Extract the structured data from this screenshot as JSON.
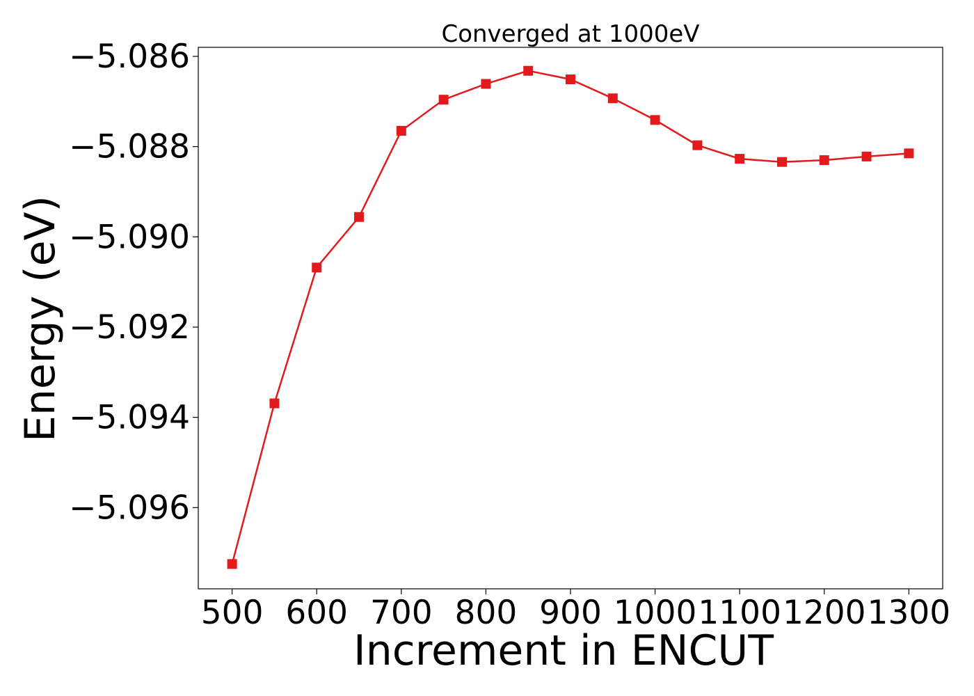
{
  "chart_data": {
    "type": "line",
    "title": "Converged at 1000eV",
    "xlabel": "Increment in ENCUT",
    "ylabel": "Energy (eV)",
    "x": [
      500,
      550,
      600,
      650,
      700,
      750,
      800,
      850,
      900,
      950,
      1000,
      1050,
      1100,
      1150,
      1200,
      1250,
      1300
    ],
    "series": [
      {
        "values": [
          -5.09725,
          -5.09369,
          -5.09068,
          -5.08956,
          -5.08765,
          -5.08696,
          -5.08661,
          -5.08632,
          -5.08651,
          -5.08693,
          -5.08741,
          -5.08797,
          -5.08827,
          -5.08834,
          -5.0883,
          -5.08822,
          -5.08815
        ],
        "color": "#e31a1c",
        "marker": "square"
      }
    ],
    "xlim": [
      460,
      1340
    ],
    "ylim": [
      -5.0978,
      -5.0858
    ],
    "xticks": [
      500,
      600,
      700,
      800,
      900,
      1000,
      1100,
      1200,
      1300
    ],
    "xtick_labels": [
      "500",
      "600",
      "700",
      "800",
      "900",
      "1000",
      "1100",
      "1200",
      "1300"
    ],
    "yticks": [
      -5.086,
      -5.088,
      -5.09,
      -5.092,
      -5.094,
      -5.096
    ],
    "ytick_labels": [
      "−5.086",
      "−5.088",
      "−5.090",
      "−5.092",
      "−5.094",
      "−5.096"
    ],
    "grid": false,
    "legend": "none"
  }
}
